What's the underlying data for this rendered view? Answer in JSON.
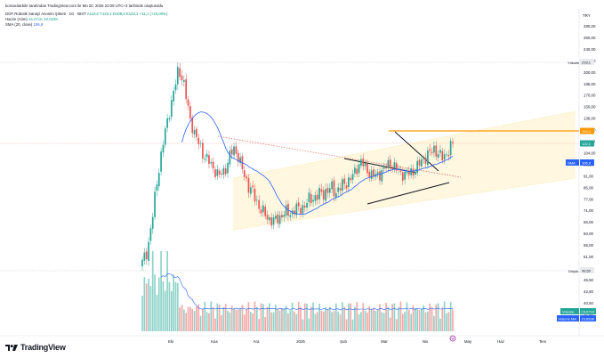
{
  "header": {
    "line1": "borsacitarbile tarafından TradingView.com ile Mü 20, 2026 22:09 UTC+3 tarihinde oluşturuldu",
    "symbol": "DOF Robotik Sanayi Anonim Şirketi · 1G · BIST",
    "ohlc": "A110,0  Y122,1  D109,1  K122,1  +11,1 (+10,00%)",
    "hacim_label": "Hacim (Alım)",
    "hacim_value": "15,071K  10,653K",
    "sma_label": "SMA (20, close)",
    "sma_value": "106,9",
    "currency": "TRY"
  },
  "tags": {
    "yuksek_label": "Yüksek",
    "yuksek_value": "218,1",
    "orange_value": "134,2",
    "price_value": "122,1",
    "sma_label": "SMA",
    "sma_value": "106,9",
    "dusuk_label": "Düşük",
    "dusuk_value": "49,50",
    "volume_label": "Volume",
    "volume_value": "15,071K",
    "volume_ma_label": "Volume MA",
    "volume_ma_value": "10,653K"
  },
  "brand": {
    "name": "TradingView"
  },
  "colors": {
    "up": "#26a69a",
    "down": "#ef5350",
    "sma": "#2962ff",
    "band": "#fff3cf",
    "orange": "#ff9800"
  },
  "chart_data": {
    "type": "candlestick",
    "y_axis_ticks": [
      "280,00",
      "260,00",
      "240,00",
      "220,00",
      "200,00",
      "185,00",
      "170,00",
      "150,00",
      "138,00",
      "126,00",
      "114,00",
      "104,00",
      "98,50",
      "91,00",
      "85,00",
      "77,00",
      "71,00",
      "65,00",
      "60,00",
      "55,00",
      "51,00",
      "47,50",
      "45,50",
      "42,50",
      "40,50",
      "37,50"
    ],
    "x_axis_ticks": [
      "Eki",
      "Kas",
      "Ara",
      "2026",
      "Şub",
      "Mar",
      "Nis",
      "May",
      "Haz",
      "Tem"
    ],
    "close_path": [
      52,
      55,
      62,
      75,
      92,
      110,
      128,
      150,
      170,
      190,
      210,
      200,
      175,
      150,
      135,
      125,
      118,
      112,
      108,
      104,
      100,
      96,
      99,
      103,
      112,
      118,
      114,
      104,
      96,
      90,
      86,
      82,
      78,
      75,
      72,
      71,
      70,
      71,
      73,
      75,
      74,
      75,
      77,
      76,
      78,
      80,
      82,
      83,
      84,
      85,
      86,
      87,
      88,
      86,
      88,
      90,
      92,
      94,
      98,
      104,
      108,
      102,
      99,
      97,
      96,
      98,
      101,
      104,
      106,
      103,
      100,
      98,
      97,
      98,
      100,
      102,
      106,
      110,
      112,
      115,
      118,
      114,
      110,
      113,
      117,
      122
    ],
    "last_close": 122.1,
    "high": 218.1,
    "low": 49.5,
    "resistance_level": 134.2,
    "sma_last": 106.9,
    "volume_last_k": 15071,
    "volume_ma_last_k": 10653,
    "grid": false
  }
}
